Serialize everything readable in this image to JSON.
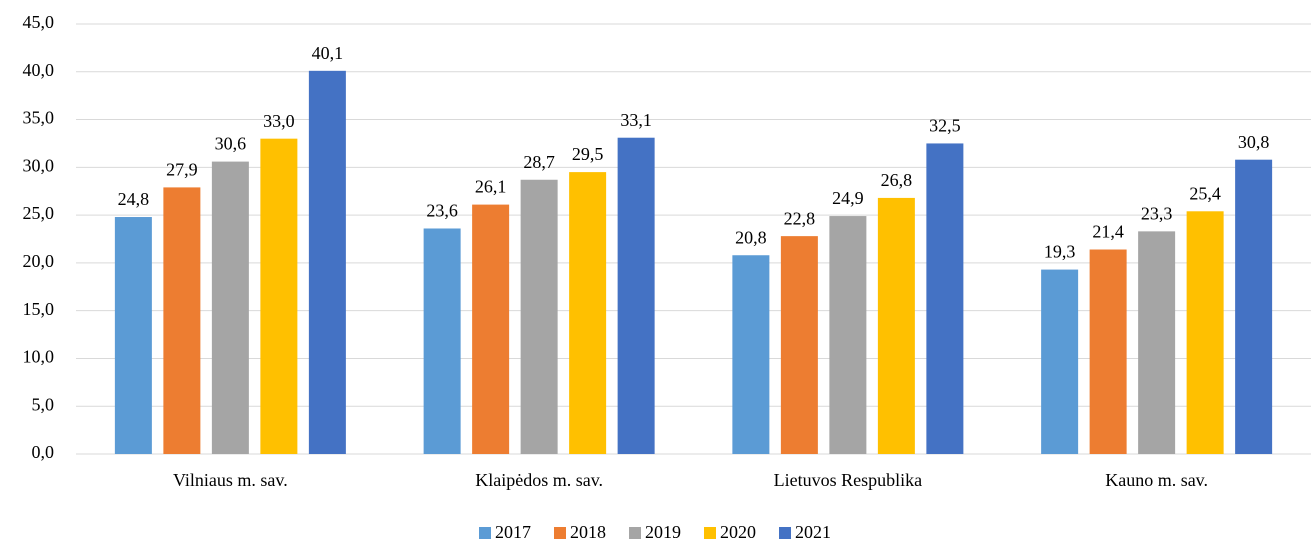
{
  "chart_data": {
    "type": "bar",
    "categories": [
      "Vilniaus m. sav.",
      "Klaipėdos m. sav.",
      "Lietuvos Respublika",
      "Kauno m. sav."
    ],
    "series": [
      {
        "name": "2017",
        "color": "#5b9bd5",
        "values": [
          24.8,
          23.6,
          20.8,
          19.3
        ],
        "value_labels": [
          "24,8",
          "23,6",
          "20,8",
          "19,3"
        ]
      },
      {
        "name": "2018",
        "color": "#ed7d31",
        "values": [
          27.9,
          26.1,
          22.8,
          21.4
        ],
        "value_labels": [
          "27,9",
          "26,1",
          "22,8",
          "21,4"
        ]
      },
      {
        "name": "2019",
        "color": "#a5a5a5",
        "values": [
          30.6,
          28.7,
          24.9,
          23.3
        ],
        "value_labels": [
          "30,6",
          "28,7",
          "24,9",
          "23,3"
        ]
      },
      {
        "name": "2020",
        "color": "#ffc000",
        "values": [
          33.0,
          29.5,
          26.8,
          25.4
        ],
        "value_labels": [
          "33,0",
          "29,5",
          "26,8",
          "25,4"
        ]
      },
      {
        "name": "2021",
        "color": "#4472c4",
        "values": [
          40.1,
          33.1,
          32.5,
          30.8
        ],
        "value_labels": [
          "40,1",
          "33,1",
          "32,5",
          "30,8"
        ]
      }
    ],
    "ylim": [
      0,
      45
    ],
    "yticks": [
      {
        "value": 0,
        "label": "0,0"
      },
      {
        "value": 5,
        "label": "5,0"
      },
      {
        "value": 10,
        "label": "10,0"
      },
      {
        "value": 15,
        "label": "15,0"
      },
      {
        "value": 20,
        "label": "20,0"
      },
      {
        "value": 25,
        "label": "25,0"
      },
      {
        "value": 30,
        "label": "30,0"
      },
      {
        "value": 35,
        "label": "35,0"
      },
      {
        "value": 40,
        "label": "40,0"
      },
      {
        "value": 45,
        "label": "45,0"
      }
    ],
    "grid": true,
    "legend": "bottom"
  }
}
